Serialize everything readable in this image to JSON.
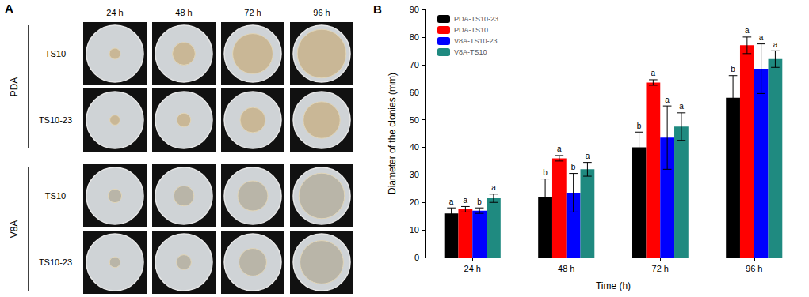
{
  "panel_a": {
    "label": "A",
    "media": [
      "PDA",
      "V8A"
    ],
    "strains": [
      "TS10",
      "TS10-23"
    ],
    "times": [
      "24 h",
      "48 h",
      "72 h",
      "96 h"
    ]
  },
  "panel_b": {
    "label": "B"
  },
  "chart_data": {
    "type": "bar",
    "x_label": "Time (h)",
    "y_label": "Diameter of the clonies (mm)",
    "categories": [
      "24 h",
      "48 h",
      "72 h",
      "96 h"
    ],
    "series": [
      {
        "name": "PDA-TS10-23",
        "color": "#000000",
        "values": [
          16,
          22,
          40,
          58
        ],
        "errors": [
          2,
          6.5,
          5.5,
          8
        ],
        "letters": [
          "a",
          "b",
          "b",
          "b"
        ]
      },
      {
        "name": "PDA-TS10",
        "color": "#ff0000",
        "values": [
          17.5,
          36,
          63.5,
          77
        ],
        "errors": [
          1,
          1,
          1,
          3
        ],
        "letters": [
          "a",
          "a",
          "a",
          "a"
        ]
      },
      {
        "name": "V8A-TS10-23",
        "color": "#0000ff",
        "values": [
          17,
          23.5,
          43.5,
          68.5
        ],
        "errors": [
          1,
          7,
          11.5,
          9
        ],
        "letters": [
          "b",
          "b",
          "a",
          "a"
        ]
      },
      {
        "name": "V8A-TS10",
        "color": "#1f8a80",
        "values": [
          21.5,
          32,
          47.5,
          72
        ],
        "errors": [
          1.5,
          2.5,
          5,
          3
        ],
        "letters": [
          "a",
          "a",
          "a",
          "a"
        ]
      }
    ],
    "ylim": [
      0,
      90
    ],
    "yticks": [
      0,
      10,
      20,
      30,
      40,
      50,
      60,
      70,
      80,
      90
    ],
    "grid": false,
    "legend": "upper left"
  }
}
